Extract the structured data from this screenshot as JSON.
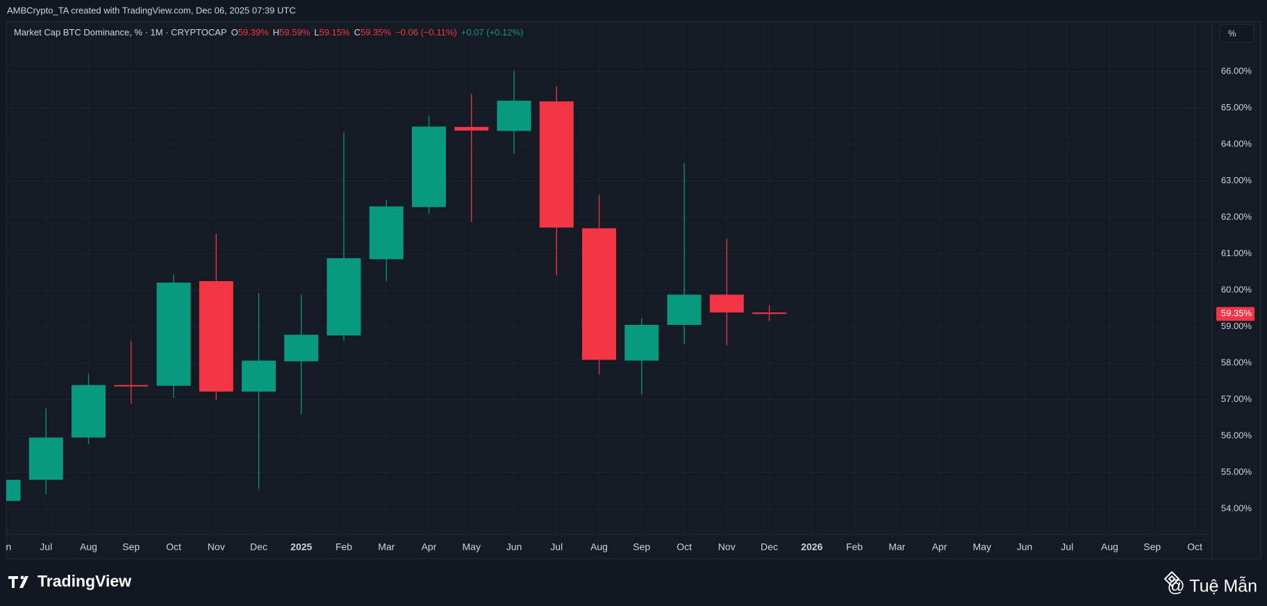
{
  "header": {
    "attribution": "AMBCrypto_TA created with TradingView.com, Dec 06, 2025 07:39 UTC"
  },
  "chart_data": {
    "type": "candlestick",
    "symbol": "Market Cap BTC Dominance, % · 1M · CRYPTOCAP",
    "legend": [
      {
        "key": "O",
        "value": "59.39%",
        "color": "#f23645"
      },
      {
        "key": "H",
        "value": "59.59%",
        "color": "#f23645"
      },
      {
        "key": "L",
        "value": "59.15%",
        "color": "#f23645"
      },
      {
        "key": "C",
        "value": "59.35%",
        "color": "#f23645"
      },
      {
        "key": "",
        "value": "−0.06 (−0.11%)",
        "color": "#f23645"
      },
      {
        "key": "",
        "value": "+0.07 (+0.12%)",
        "color": "#089981"
      }
    ],
    "scale_button": "%",
    "categories": [
      "Jun",
      "Jul",
      "Aug",
      "Sep",
      "Oct",
      "Nov",
      "Dec",
      "2025",
      "Feb",
      "Mar",
      "Apr",
      "May",
      "Jun",
      "Jul",
      "Aug",
      "Sep",
      "Oct",
      "Nov",
      "Dec",
      "2026",
      "Feb",
      "Mar",
      "Apr",
      "May",
      "Jun",
      "Jul",
      "Aug",
      "Sep",
      "Oct"
    ],
    "open": [
      54.22,
      54.8,
      55.96,
      57.4,
      57.38,
      60.25,
      57.22,
      58.05,
      58.76,
      60.85,
      62.28,
      64.48,
      64.37,
      65.18,
      61.7,
      58.07,
      59.05,
      59.88,
      59.39,
      null,
      null,
      null,
      null,
      null,
      null,
      null,
      null,
      null,
      null
    ],
    "high": [
      54.85,
      56.76,
      57.71,
      58.61,
      60.43,
      61.55,
      59.92,
      59.88,
      64.33,
      62.48,
      64.78,
      65.38,
      66.02,
      65.6,
      62.61,
      59.23,
      63.48,
      61.41,
      59.59,
      null,
      null,
      null,
      null,
      null,
      null,
      null,
      null,
      null,
      null
    ],
    "low": [
      54.2,
      54.4,
      55.78,
      56.89,
      57.05,
      57.0,
      54.55,
      56.6,
      58.61,
      60.25,
      62.1,
      61.88,
      63.75,
      60.41,
      57.69,
      57.14,
      58.52,
      58.49,
      59.15,
      null,
      null,
      null,
      null,
      null,
      null,
      null,
      null,
      null,
      null
    ],
    "close": [
      54.8,
      55.96,
      57.4,
      57.37,
      60.21,
      57.22,
      58.07,
      58.78,
      60.88,
      62.3,
      64.49,
      64.38,
      65.2,
      61.72,
      58.09,
      59.05,
      59.88,
      59.39,
      59.35,
      null,
      null,
      null,
      null,
      null,
      null,
      null,
      null,
      null,
      null
    ],
    "up_color": "#089981",
    "down_color": "#f23645",
    "ylim": [
      53.3,
      67.2
    ],
    "yticks": [
      {
        "value": 54,
        "label": "54.00%"
      },
      {
        "value": 55,
        "label": "55.00%"
      },
      {
        "value": 56,
        "label": "56.00%"
      },
      {
        "value": 57,
        "label": "57.00%"
      },
      {
        "value": 58,
        "label": "58.00%"
      },
      {
        "value": 59,
        "label": "59.00%"
      },
      {
        "value": 60,
        "label": "60.00%"
      },
      {
        "value": 61,
        "label": "61.00%"
      },
      {
        "value": 62,
        "label": "62.00%"
      },
      {
        "value": 63,
        "label": "63.00%"
      },
      {
        "value": 64,
        "label": "64.00%"
      },
      {
        "value": 65,
        "label": "65.00%"
      },
      {
        "value": 66,
        "label": "66.00%"
      }
    ],
    "last_price": {
      "value": 59.35,
      "label": "59.35%"
    },
    "grid": true
  },
  "footer": {
    "brand": "TradingView",
    "credit": "@ Tuệ Mẫn"
  }
}
